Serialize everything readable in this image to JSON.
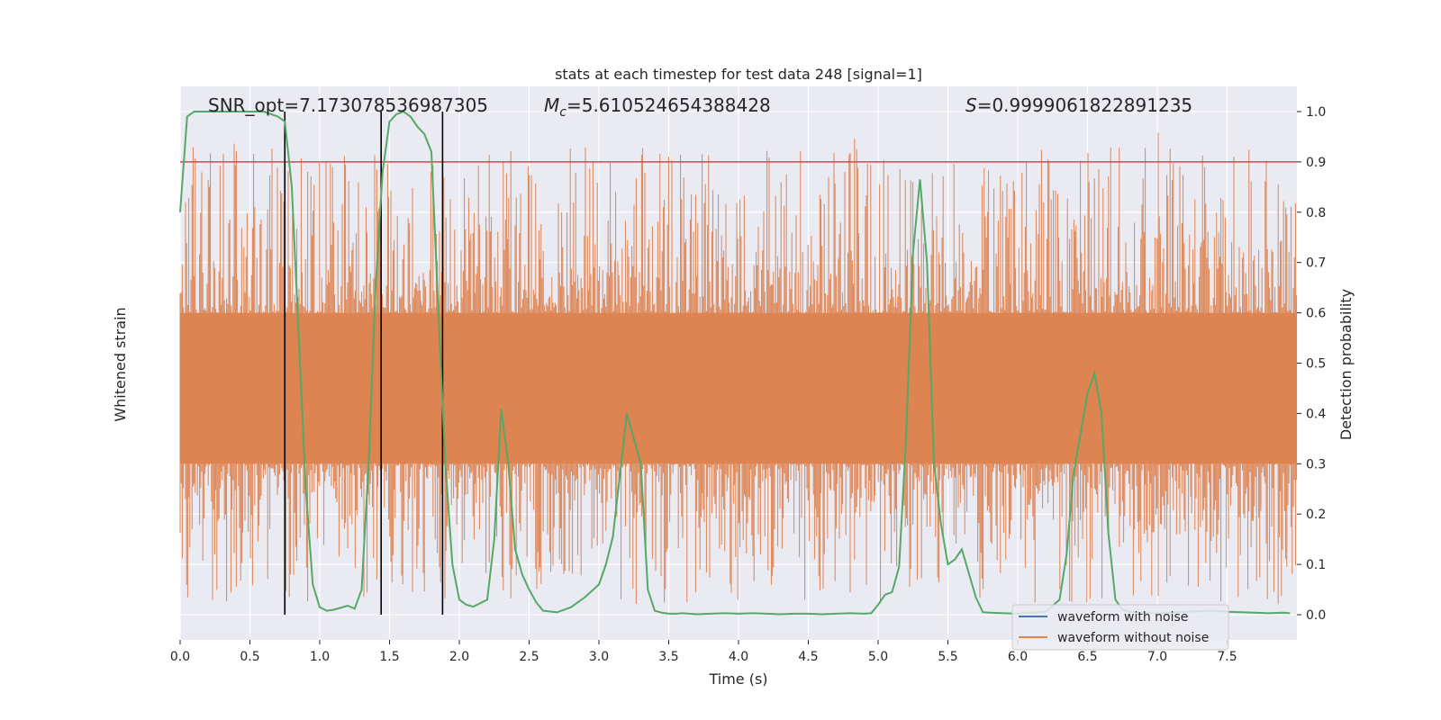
{
  "chart_data": {
    "type": "line",
    "title": "stats at each timestep for test data 248 [signal=1]",
    "xlabel": "Time (s)",
    "ylabel_left": "Whitened strain",
    "ylabel_right": "Detection probability",
    "xlim": [
      0,
      8.0
    ],
    "ylim_right": [
      -0.05,
      1.05
    ],
    "x_ticks": [
      "0.0",
      "0.5",
      "1.0",
      "1.5",
      "2.0",
      "2.5",
      "3.0",
      "3.5",
      "4.0",
      "4.5",
      "5.0",
      "5.5",
      "6.0",
      "6.5",
      "7.0",
      "7.5"
    ],
    "y_ticks_right": [
      "0.0",
      "0.1",
      "0.2",
      "0.3",
      "0.4",
      "0.5",
      "0.6",
      "0.7",
      "0.8",
      "0.9",
      "1.0"
    ],
    "grid": true,
    "annotations": {
      "snr": "SNR_opt=7.173078536987305",
      "mc": "=5.610524654388428",
      "mc_symbol": "M",
      "mc_sub": "c",
      "s": "=0.9999061822891235",
      "s_symbol": "S"
    },
    "threshold": 0.9,
    "vlines": [
      0.75,
      1.44,
      1.88
    ],
    "legend": {
      "placement": "lower-right",
      "entries": [
        {
          "label": "waveform with noise",
          "color": "#4c72b0"
        },
        {
          "label": "waveform without noise",
          "color": "#dd8452"
        }
      ]
    },
    "detection_probability": {
      "color": "#55a868",
      "x": [
        0.0,
        0.05,
        0.1,
        0.2,
        0.3,
        0.4,
        0.5,
        0.6,
        0.7,
        0.75,
        0.8,
        0.85,
        0.9,
        0.95,
        1.0,
        1.05,
        1.1,
        1.2,
        1.25,
        1.3,
        1.35,
        1.4,
        1.45,
        1.5,
        1.55,
        1.6,
        1.65,
        1.7,
        1.75,
        1.8,
        1.85,
        1.9,
        1.95,
        2.0,
        2.05,
        2.1,
        2.2,
        2.25,
        2.3,
        2.35,
        2.4,
        2.45,
        2.5,
        2.55,
        2.6,
        2.7,
        2.8,
        2.9,
        3.0,
        3.05,
        3.1,
        3.2,
        3.3,
        3.35,
        3.4,
        3.45,
        3.5,
        3.55,
        3.6,
        3.7,
        3.8,
        3.9,
        4.0,
        4.1,
        4.2,
        4.3,
        4.4,
        4.5,
        4.6,
        4.7,
        4.8,
        4.9,
        4.95,
        5.0,
        5.05,
        5.1,
        5.15,
        5.2,
        5.25,
        5.3,
        5.35,
        5.4,
        5.45,
        5.5,
        5.55,
        5.6,
        5.7,
        5.75,
        5.8,
        5.9,
        6.0,
        6.1,
        6.2,
        6.3,
        6.35,
        6.4,
        6.45,
        6.5,
        6.55,
        6.6,
        6.65,
        6.7,
        6.75,
        6.8,
        6.85,
        6.9,
        7.0,
        7.1,
        7.2,
        7.3,
        7.4,
        7.5,
        7.6,
        7.7,
        7.8,
        7.9,
        7.95
      ],
      "y": [
        0.8,
        0.99,
        1.0,
        1.0,
        1.0,
        1.0,
        1.0,
        1.0,
        0.99,
        0.98,
        0.85,
        0.55,
        0.25,
        0.06,
        0.015,
        0.008,
        0.01,
        0.018,
        0.012,
        0.05,
        0.3,
        0.65,
        0.88,
        0.98,
        0.995,
        1.0,
        0.99,
        0.97,
        0.955,
        0.92,
        0.6,
        0.3,
        0.1,
        0.03,
        0.02,
        0.016,
        0.03,
        0.15,
        0.41,
        0.3,
        0.13,
        0.08,
        0.05,
        0.025,
        0.008,
        0.005,
        0.015,
        0.035,
        0.06,
        0.1,
        0.155,
        0.4,
        0.3,
        0.05,
        0.008,
        0.004,
        0.002,
        0.002,
        0.003,
        0.001,
        0.002,
        0.003,
        0.002,
        0.003,
        0.002,
        0.001,
        0.002,
        0.002,
        0.001,
        0.002,
        0.003,
        0.002,
        0.003,
        0.02,
        0.04,
        0.045,
        0.095,
        0.35,
        0.72,
        0.865,
        0.7,
        0.3,
        0.18,
        0.1,
        0.11,
        0.13,
        0.035,
        0.005,
        0.004,
        0.003,
        0.002,
        0.004,
        0.006,
        0.03,
        0.12,
        0.28,
        0.36,
        0.44,
        0.48,
        0.4,
        0.16,
        0.03,
        0.01,
        0.006,
        0.005,
        0.004,
        0.003,
        0.004,
        0.006,
        0.007,
        0.008,
        0.006,
        0.005,
        0.004,
        0.003,
        0.004,
        0.003
      ]
    }
  }
}
